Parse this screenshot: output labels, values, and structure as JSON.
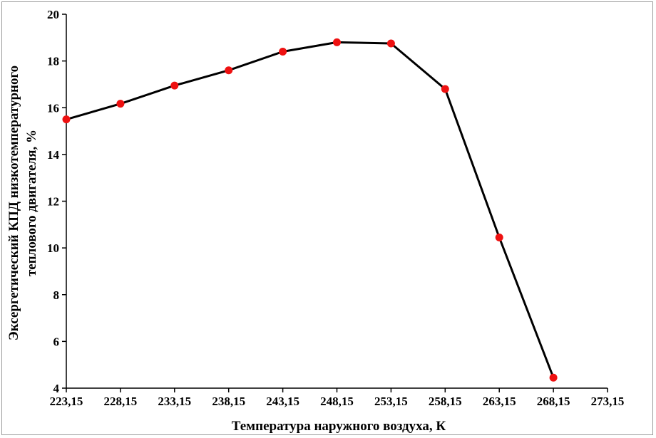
{
  "chart_data": {
    "type": "line",
    "title": "",
    "xlabel": "Температура наружного воздуха, К",
    "ylabel_lines": [
      "Эксергетический КПД низкотемпературного",
      "теплового двигателя, %"
    ],
    "x_ticks": [
      "223,15",
      "228,15",
      "233,15",
      "238,15",
      "243,15",
      "248,15",
      "253,15",
      "258,15",
      "263,15",
      "268,15",
      "273,15"
    ],
    "y_ticks": [
      "4",
      "6",
      "8",
      "10",
      "12",
      "14",
      "16",
      "18",
      "20"
    ],
    "xlim": [
      223.15,
      273.15
    ],
    "ylim": [
      4,
      20
    ],
    "grid": false,
    "series": [
      {
        "color": "#000000",
        "marker_color": "#ee1111",
        "x": [
          223.15,
          228.15,
          233.15,
          238.15,
          243.15,
          248.15,
          253.15,
          258.15,
          263.15,
          268.15
        ],
        "y": [
          15.5,
          16.17,
          16.95,
          17.6,
          18.4,
          18.8,
          18.75,
          16.8,
          10.45,
          4.45
        ]
      }
    ]
  }
}
